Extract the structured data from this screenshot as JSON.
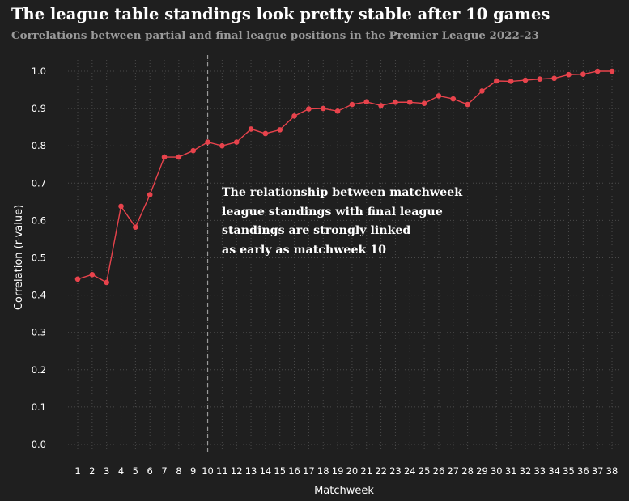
{
  "chart_data": {
    "type": "line",
    "title": "The league table standings look pretty stable after 10 games",
    "subtitle": "Correlations between partial and final league positions in the Premier League 2022-23",
    "xlabel": "Matchweek",
    "ylabel": "Correlation (r-value)",
    "x": [
      1,
      2,
      3,
      4,
      5,
      6,
      7,
      8,
      9,
      10,
      11,
      12,
      13,
      14,
      15,
      16,
      17,
      18,
      19,
      20,
      21,
      22,
      23,
      24,
      25,
      26,
      27,
      28,
      29,
      30,
      31,
      32,
      33,
      34,
      35,
      36,
      37,
      38
    ],
    "series": [
      {
        "name": "Correlation",
        "values": [
          0.443,
          0.455,
          0.434,
          0.638,
          0.582,
          0.669,
          0.77,
          0.77,
          0.787,
          0.81,
          0.8,
          0.81,
          0.845,
          0.833,
          0.843,
          0.88,
          0.899,
          0.9,
          0.893,
          0.911,
          0.918,
          0.908,
          0.917,
          0.917,
          0.914,
          0.934,
          0.926,
          0.911,
          0.947,
          0.974,
          0.973,
          0.976,
          0.979,
          0.981,
          0.991,
          0.992,
          1.0,
          1.0
        ]
      }
    ],
    "ylim": [
      0.0,
      1.0
    ],
    "yticks": [
      "0.0",
      "0.1",
      "0.2",
      "0.3",
      "0.4",
      "0.5",
      "0.6",
      "0.7",
      "0.8",
      "0.9",
      "1.0"
    ],
    "xticks": [
      "1",
      "2",
      "3",
      "4",
      "5",
      "6",
      "7",
      "8",
      "9",
      "10",
      "11",
      "12",
      "13",
      "14",
      "15",
      "16",
      "17",
      "18",
      "19",
      "20",
      "21",
      "22",
      "23",
      "24",
      "25",
      "26",
      "27",
      "28",
      "29",
      "30",
      "31",
      "32",
      "33",
      "34",
      "35",
      "36",
      "37",
      "38"
    ],
    "reference_line": {
      "x": 10,
      "style": "dashed"
    },
    "annotation": [
      "The relationship between matchweek",
      "league standings with final league",
      "standings are strongly linked",
      "as early as matchweek 10"
    ],
    "grid": true,
    "colors": {
      "background": "#1f1f1f",
      "line": "#e8434c",
      "grid": "#4a4a4a",
      "reference": "#9a9a9a",
      "subtitle": "#9a9a9a"
    }
  }
}
